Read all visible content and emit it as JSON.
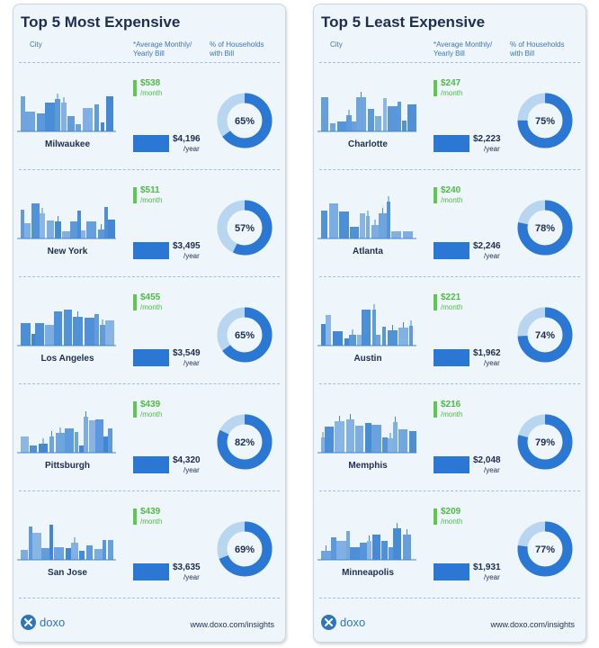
{
  "colors": {
    "panel_bg": "#eef5fb",
    "accent_blue": "#2a78d4",
    "donut_track": "#b8d6f0",
    "monthly_green": "#4fbd44",
    "skyline": "#3f86d4",
    "text_dark": "#1d2e52"
  },
  "footer": {
    "logo_text": "doxo",
    "url": "www.doxo.com/insights"
  },
  "chart_data": [
    {
      "type": "table",
      "title": "Top 5 Most Expensive",
      "columns": [
        "City",
        "*Average Monthly/ Yearly Bill",
        "% of Households with Bill"
      ],
      "column_labels": {
        "city": "City",
        "bill_line1": "*Average Monthly/",
        "bill_line2": "Yearly Bill",
        "pct_line1": "% of Households",
        "pct_line2": "with Bill"
      },
      "monthly_unit": "/month",
      "yearly_unit": "/year",
      "rows": [
        {
          "city": "Milwaukee",
          "monthly": "$538",
          "yearly": "$4,196",
          "yearly_value": 4196,
          "pct": 65,
          "pct_label": "65%"
        },
        {
          "city": "New York",
          "monthly": "$511",
          "yearly": "$3,495",
          "yearly_value": 3495,
          "pct": 57,
          "pct_label": "57%"
        },
        {
          "city": "Los Angeles",
          "monthly": "$455",
          "yearly": "$3,549",
          "yearly_value": 3549,
          "pct": 65,
          "pct_label": "65%"
        },
        {
          "city": "Pittsburgh",
          "monthly": "$439",
          "yearly": "$4,320",
          "yearly_value": 4320,
          "pct": 82,
          "pct_label": "82%"
        },
        {
          "city": "San Jose",
          "monthly": "$439",
          "yearly": "$3,635",
          "yearly_value": 3635,
          "pct": 69,
          "pct_label": "69%"
        }
      ]
    },
    {
      "type": "table",
      "title": "Top 5 Least Expensive",
      "columns": [
        "City",
        "*Average Monthly/ Yearly Bill",
        "% of Households with Bill"
      ],
      "column_labels": {
        "city": "City",
        "bill_line1": "*Average Monthly/",
        "bill_line2": "Yearly Bill",
        "pct_line1": "% of Households",
        "pct_line2": "with Bill"
      },
      "monthly_unit": "/month",
      "yearly_unit": "/year",
      "rows": [
        {
          "city": "Charlotte",
          "monthly": "$247",
          "yearly": "$2,223",
          "yearly_value": 2223,
          "pct": 75,
          "pct_label": "75%"
        },
        {
          "city": "Atlanta",
          "monthly": "$240",
          "yearly": "$2,246",
          "yearly_value": 2246,
          "pct": 78,
          "pct_label": "78%"
        },
        {
          "city": "Austin",
          "monthly": "$221",
          "yearly": "$1,962",
          "yearly_value": 1962,
          "pct": 74,
          "pct_label": "74%"
        },
        {
          "city": "Memphis",
          "monthly": "$216",
          "yearly": "$2,048",
          "yearly_value": 2048,
          "pct": 79,
          "pct_label": "79%"
        },
        {
          "city": "Minneapolis",
          "monthly": "$209",
          "yearly": "$1,931",
          "yearly_value": 1931,
          "pct": 77,
          "pct_label": "77%"
        }
      ]
    }
  ]
}
